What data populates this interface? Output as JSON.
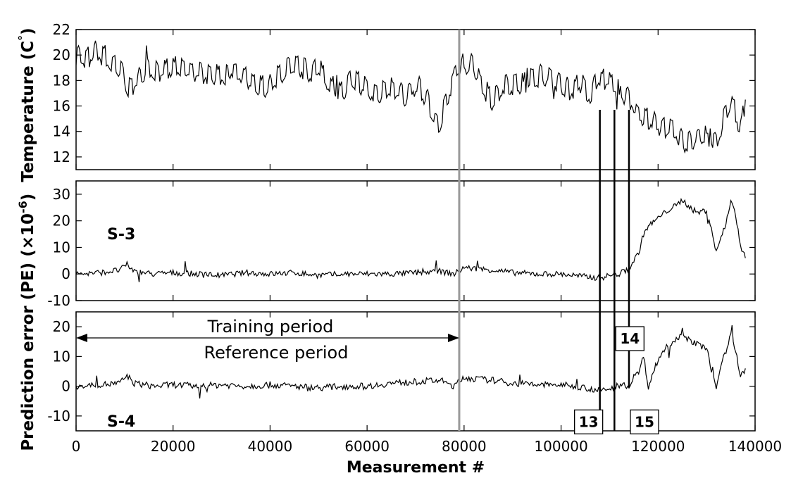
{
  "chart_data": {
    "type": "line",
    "xlabel": "Measurement #",
    "ylabel": "Prediction error (PE) (×10⁻⁶)  Temperature (C°)",
    "ylabel_pe": "Prediction error (PE) (×10",
    "ylabel_pe_sup": "-6",
    "ylabel_pe_end": ")",
    "ylabel_temp": "Temperature (C",
    "ylabel_temp_end": ")",
    "xlim": [
      0,
      140000
    ],
    "xticks": [
      0,
      20000,
      40000,
      60000,
      80000,
      100000,
      120000,
      140000
    ],
    "xtick_labels": [
      "0",
      "20000",
      "40000",
      "60000",
      "80000",
      "100000",
      "120000",
      "140000"
    ],
    "grid": false,
    "training_boundary_x": 79000,
    "event_lines_x": [
      108000,
      111000,
      114000
    ],
    "colors": {
      "line": "#000000",
      "boundary": "#999999",
      "frame": "#000000"
    },
    "panels": [
      {
        "id": "temperature",
        "ylim": [
          11,
          22
        ],
        "yticks": [
          12,
          14,
          16,
          18,
          20,
          22
        ],
        "ytick_labels": [
          "12",
          "14",
          "16",
          "18",
          "20",
          "22"
        ],
        "label": "",
        "series": [
          {
            "x": [
              0,
              2000,
              4000,
              6000,
              8000,
              9500,
              11000,
              13000,
              15000,
              17000,
              20000,
              23000,
              26000,
              29000,
              32000,
              35000,
              37000,
              40000,
              43000,
              46000,
              48000,
              50000,
              53000,
              55000,
              57000,
              60000,
              62000,
              64000,
              66000,
              68000,
              70000,
              72000,
              74000,
              75000,
              76500,
              78000,
              80000,
              82000,
              84000,
              86000,
              88000,
              90000,
              92000,
              94000,
              96000,
              98000,
              100000,
              102000,
              104000,
              106000,
              108000,
              110000,
              112000,
              114000,
              116000,
              118000,
              120000,
              122000,
              124000,
              125000,
              127000,
              129000,
              131000,
              132000,
              133000,
              134000,
              135000,
              136000,
              137000,
              138000
            ],
            "y": [
              20.0,
              19.5,
              20.2,
              19.8,
              19.0,
              18.6,
              17.2,
              18.2,
              19.0,
              18.6,
              18.9,
              18.8,
              18.5,
              18.3,
              18.7,
              18.2,
              17.4,
              17.5,
              18.8,
              19.0,
              18.6,
              18.9,
              17.4,
              17.0,
              18.1,
              17.3,
              16.8,
              17.4,
              17.2,
              16.7,
              17.6,
              16.8,
              14.8,
              14.4,
              16.5,
              18.4,
              19.3,
              19.0,
              17.4,
              16.3,
              17.6,
              17.4,
              17.7,
              18.0,
              18.4,
              18.2,
              17.6,
              17.1,
              17.8,
              16.9,
              18.2,
              17.9,
              17.2,
              16.6,
              15.2,
              14.9,
              14.4,
              14.2,
              13.8,
              13.1,
              13.3,
              13.6,
              13.3,
              12.9,
              14.1,
              15.6,
              16.5,
              15.2,
              14.2,
              16.5
            ]
          }
        ]
      },
      {
        "id": "S-3",
        "ylim": [
          -10,
          35
        ],
        "yticks": [
          -10,
          0,
          10,
          20,
          30
        ],
        "ytick_labels": [
          "-10",
          "0",
          "10",
          "20",
          "30"
        ],
        "label": "S-3",
        "series": [
          {
            "x": [
              0,
              5000,
              9000,
              10500,
              12000,
              16000,
              20000,
              25000,
              30000,
              35000,
              40000,
              45000,
              50000,
              55000,
              60000,
              65000,
              70000,
              75000,
              78000,
              80000,
              82000,
              86000,
              90000,
              95000,
              100000,
              105000,
              108000,
              110000,
              112000,
              113000,
              114000,
              116000,
              117000,
              118000,
              120000,
              122000,
              124000,
              125000,
              126000,
              128000,
              130000,
              131000,
              132000,
              133000,
              134000,
              135000,
              136000,
              137000,
              138000
            ],
            "y": [
              0.0,
              0.5,
              1.5,
              3.5,
              1.0,
              0.0,
              0.5,
              0.0,
              -0.5,
              0.5,
              0.0,
              0.5,
              -0.5,
              0.0,
              0.0,
              0.0,
              0.5,
              1.0,
              0.0,
              2.5,
              2.0,
              1.5,
              0.5,
              0.0,
              0.0,
              -1.0,
              -1.5,
              -0.5,
              0.0,
              1.0,
              2.0,
              8.0,
              15.0,
              18.0,
              21.0,
              24.0,
              26.0,
              28.0,
              26.0,
              23.0,
              24.0,
              17.0,
              8.0,
              14.0,
              19.0,
              28.0,
              22.0,
              10.0,
              6.0
            ]
          }
        ]
      },
      {
        "id": "S-4",
        "ylim": [
          -15,
          25
        ],
        "yticks": [
          -10,
          0,
          10,
          20
        ],
        "ytick_labels": [
          "-10",
          "0",
          "10",
          "20"
        ],
        "label": "S-4",
        "series": [
          {
            "x": [
              0,
              5000,
              9000,
              10500,
              12000,
              16000,
              20000,
              25000,
              30000,
              35000,
              40000,
              45000,
              50000,
              55000,
              60000,
              65000,
              70000,
              75000,
              78000,
              80000,
              82000,
              86000,
              90000,
              95000,
              100000,
              105000,
              108000,
              110000,
              112000,
              113000,
              114000,
              116000,
              117000,
              118000,
              120000,
              122000,
              124000,
              125000,
              126000,
              128000,
              130000,
              131000,
              132000,
              133000,
              134000,
              135000,
              136000,
              137000,
              138000
            ],
            "y": [
              0.0,
              0.5,
              1.0,
              3.5,
              1.0,
              0.0,
              0.5,
              0.0,
              0.5,
              0.0,
              0.5,
              0.0,
              -0.5,
              0.0,
              0.0,
              1.0,
              1.5,
              2.0,
              0.0,
              3.0,
              2.5,
              2.0,
              1.0,
              0.5,
              0.5,
              -0.5,
              -1.5,
              -1.0,
              0.5,
              1.0,
              -0.5,
              5.0,
              10.0,
              0.0,
              9.0,
              14.0,
              16.0,
              19.0,
              16.0,
              14.0,
              13.0,
              5.0,
              -1.0,
              8.0,
              12.0,
              18.0,
              12.0,
              3.0,
              6.0
            ]
          }
        ]
      }
    ],
    "annotations": {
      "training_period": "Training period",
      "reference_period": "Reference period",
      "boxes": [
        {
          "label": "13",
          "x": 108000,
          "panel": "S-4",
          "y": -12
        },
        {
          "label": "14",
          "x": 111000,
          "panel": "S-4",
          "y": 16
        },
        {
          "label": "15",
          "x": 114000,
          "panel": "S-4",
          "y": -12
        }
      ]
    }
  }
}
